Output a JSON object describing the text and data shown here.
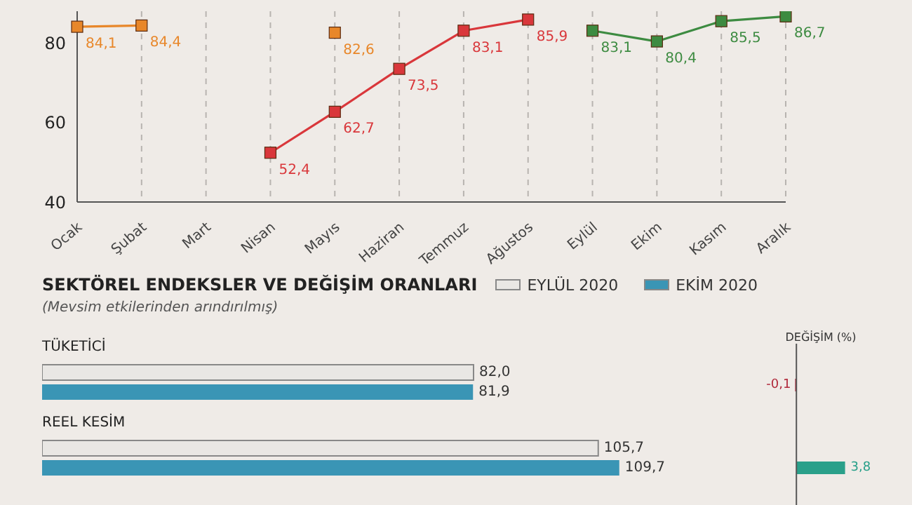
{
  "chart_data": [
    {
      "type": "line",
      "categories": [
        "Ocak",
        "Şubat",
        "Mart",
        "Nisan",
        "Mayıs",
        "Haziran",
        "Temmuz",
        "Ağustos",
        "Eylül",
        "Ekim",
        "Kasım",
        "Aralık"
      ],
      "series": [
        {
          "color": "#e8872a",
          "values": [
            84.1,
            84.4,
            null,
            null,
            82.6,
            null,
            null,
            null,
            null,
            null,
            null,
            null
          ],
          "value_labels": [
            "84,1",
            "84,4",
            null,
            null,
            "82,6",
            null,
            null,
            null,
            null,
            null,
            null,
            null
          ]
        },
        {
          "color": "#d9373b",
          "values": [
            null,
            null,
            null,
            52.4,
            62.7,
            73.5,
            83.1,
            85.9,
            null,
            null,
            null,
            null
          ],
          "value_labels": [
            null,
            null,
            null,
            "52,4",
            "62,7",
            "73,5",
            "83,1",
            "85,9",
            null,
            null,
            null,
            null
          ]
        },
        {
          "color": "#3d8b41",
          "values": [
            null,
            null,
            null,
            null,
            null,
            null,
            null,
            null,
            83.1,
            80.4,
            85.5,
            86.7
          ],
          "value_labels": [
            null,
            null,
            null,
            null,
            null,
            null,
            null,
            null,
            "83,1",
            "80,4",
            "85,5",
            "86,7"
          ]
        }
      ],
      "ylim": [
        40,
        88
      ],
      "yticks": [
        40,
        60,
        80
      ],
      "grid": "x",
      "marker": "square"
    },
    {
      "type": "bar",
      "orientation": "horizontal",
      "title": "SEKTÖREL ENDEKSLER VE DEĞİŞİM ORANLARI",
      "subtitle": "(Mevsim etkilerinden arındırılmış)",
      "categories": [
        "TÜKETİCİ",
        "REEL KESİM"
      ],
      "series": [
        {
          "name": "EYLÜL 2020",
          "color": "#e9e7e4",
          "values": [
            82.0,
            105.7
          ],
          "value_labels": [
            "82,0",
            "105,7"
          ]
        },
        {
          "name": "EKİM 2020",
          "color": "#3a95b5",
          "values": [
            81.9,
            109.7
          ],
          "value_labels": [
            "81,9",
            "109,7"
          ]
        }
      ],
      "legend": "top right"
    },
    {
      "type": "bar",
      "orientation": "horizontal",
      "title": "DEĞİŞİM (%)",
      "categories": [
        null,
        null
      ],
      "values": [
        -0.1,
        3.8
      ],
      "colors": [
        "#b0283a",
        "#2aa08a"
      ],
      "value_labels": [
        "-0,1",
        "3,8"
      ]
    }
  ]
}
